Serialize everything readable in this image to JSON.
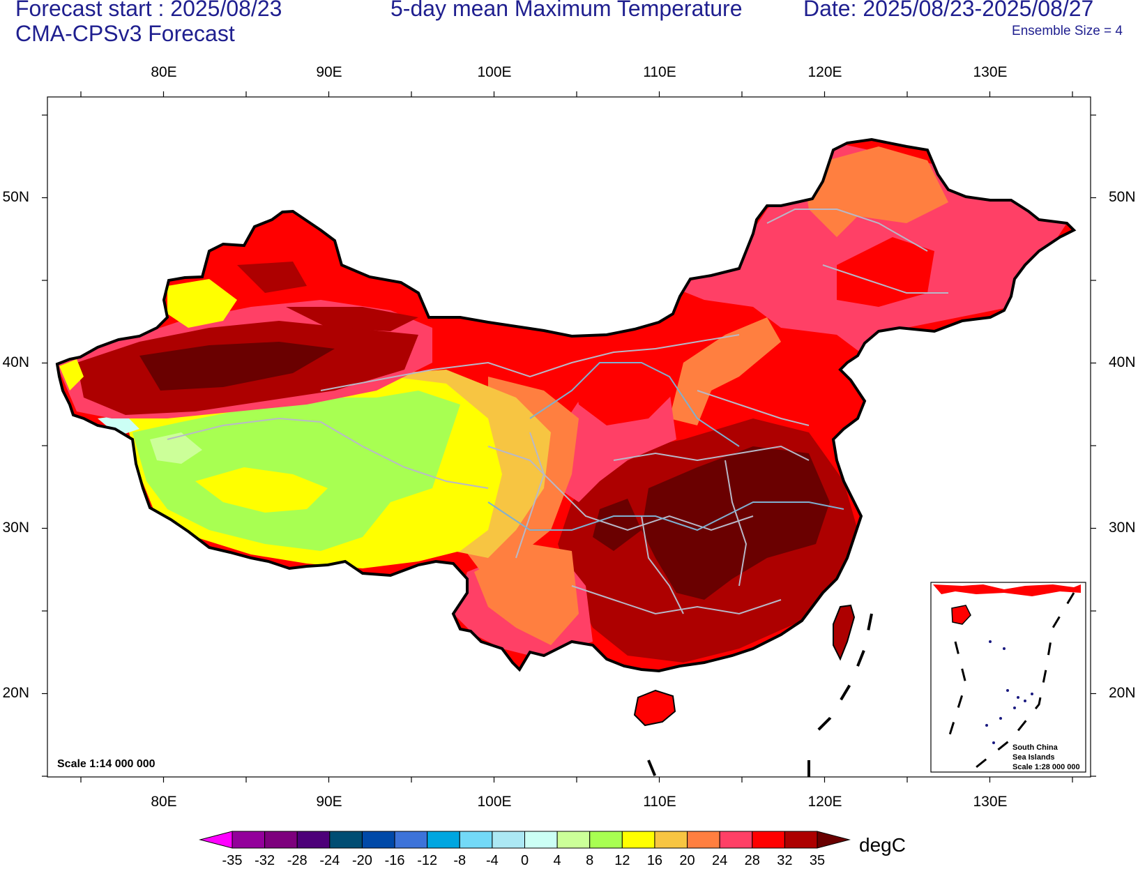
{
  "header": {
    "forecast_start": "Forecast start : 2025/08/23",
    "model": "CMA-CPSv3 Forecast",
    "title": "5-day mean Maximum Temperature",
    "date_range": "Date: 2025/08/23-2025/08/27",
    "ensemble": "Ensemble Size = 4"
  },
  "map": {
    "lon_labels": [
      "80E",
      "90E",
      "100E",
      "110E",
      "120E",
      "130E"
    ],
    "lat_labels": [
      "50N",
      "40N",
      "30N",
      "20N"
    ],
    "scale": "Scale 1:14 000 000",
    "inset": {
      "line1": "South China",
      "line2": "Sea Islands",
      "line3": "Scale 1:28 000 000"
    }
  },
  "colorbar": {
    "unit": "degC",
    "levels": [
      "-35",
      "-32",
      "-28",
      "-24",
      "-20",
      "-16",
      "-12",
      "-8",
      "-4",
      "0",
      "4",
      "8",
      "12",
      "16",
      "20",
      "24",
      "28",
      "32",
      "35"
    ],
    "colors": [
      "#ff00ff",
      "#93009b",
      "#7d007d",
      "#4d0079",
      "#004d73",
      "#0049a8",
      "#3d73d9",
      "#00a6e0",
      "#73d9f7",
      "#ace8f4",
      "#ccfff5",
      "#ccff99",
      "#a8ff52",
      "#ffff00",
      "#f7c542",
      "#ff7f40",
      "#ff4066",
      "#ff0000",
      "#ad0000",
      "#6a0000"
    ]
  },
  "regions": {
    "hot_core": "#6a0000",
    "warm": "#ad0000",
    "red": "#ff0000",
    "pink": "#ff4066",
    "orange": "#ff7f40",
    "gold": "#f7c542",
    "yellow": "#ffff00",
    "green": "#a8ff52",
    "pale_green": "#ccff99",
    "pale_cyan": "#ccfff5"
  }
}
